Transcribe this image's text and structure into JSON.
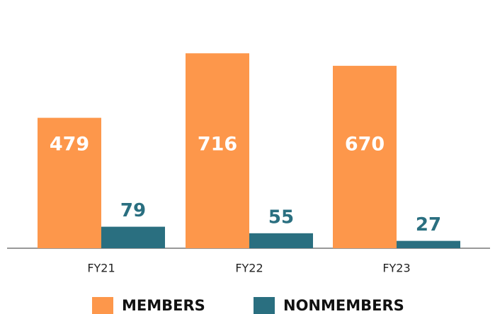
{
  "chart_data": {
    "type": "bar",
    "categories": [
      "FY21",
      "FY22",
      "FY23"
    ],
    "series": [
      {
        "name": "MEMBERS",
        "color": "#fd974b",
        "values": [
          479,
          716,
          670
        ]
      },
      {
        "name": "NONMEMBERS",
        "color": "#2a6f80",
        "values": [
          79,
          55,
          27
        ]
      }
    ],
    "legend": "bottom"
  }
}
